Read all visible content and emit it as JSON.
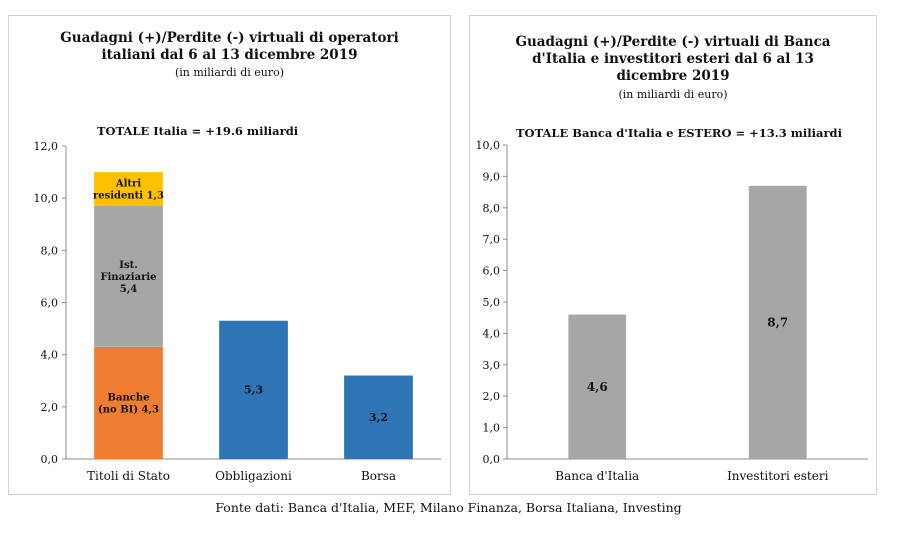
{
  "chart_data": [
    {
      "type": "bar",
      "stacked": true,
      "title_line1": "Guadagni (+)/Perdite (-) virtuali di operatori",
      "title_line2": "italiani dal 6 al 13 dicembre 2019",
      "subtitle": "(in miliardi di euro)",
      "total_label": "TOTALE  Italia = +19.6 miliardi",
      "categories": [
        "Titoli di Stato",
        "Obbligazioni",
        "Borsa"
      ],
      "ylim": [
        0,
        12
      ],
      "yticks": [
        "0,0",
        "2,0",
        "4,0",
        "6,0",
        "8,0",
        "10,0",
        "12,0"
      ],
      "legend": "none",
      "grid": false,
      "bars": [
        {
          "category": "Titoli di Stato",
          "segments": [
            {
              "value": 4.3,
              "label_lines": [
                "Banche",
                "(no BI) 4,3"
              ],
              "color": "#ED7D31"
            },
            {
              "value": 5.4,
              "label_lines": [
                "Ist.",
                "Finaziarie",
                "5,4"
              ],
              "color": "#A6A6A6"
            },
            {
              "value": 1.3,
              "label_lines": [
                "Altri",
                "residenti 1,3"
              ],
              "color": "#FFC000"
            }
          ]
        },
        {
          "category": "Obbligazioni",
          "segments": [
            {
              "value": 5.3,
              "label_lines": [
                "5,3"
              ],
              "color": "#2E75B6"
            }
          ]
        },
        {
          "category": "Borsa",
          "segments": [
            {
              "value": 3.2,
              "label_lines": [
                "3,2"
              ],
              "color": "#2E75B6"
            }
          ]
        }
      ]
    },
    {
      "type": "bar",
      "title_line1": "Guadagni (+)/Perdite (-) virtuali di Banca",
      "title_line2": "d'Italia e investitori esteri  dal 6 al 13",
      "title_line3": "dicembre 2019",
      "subtitle": "(in miliardi di euro)",
      "total_label": "TOTALE  Banca d'Italia e ESTERO = +13.3 miliardi",
      "categories": [
        "Banca d'Italia",
        "Investitori esteri"
      ],
      "values": [
        4.6,
        8.7
      ],
      "value_labels": [
        "4,6",
        "8,7"
      ],
      "color": "#A6A6A6",
      "ylim": [
        0,
        10
      ],
      "yticks": [
        "0,0",
        "1,0",
        "2,0",
        "3,0",
        "4,0",
        "5,0",
        "6,0",
        "7,0",
        "8,0",
        "9,0",
        "10,0"
      ],
      "legend": "none",
      "grid": false
    }
  ],
  "source": "Fonte dati: Banca d'Italia, MEF, Milano Finanza, Borsa Italiana, Investing"
}
